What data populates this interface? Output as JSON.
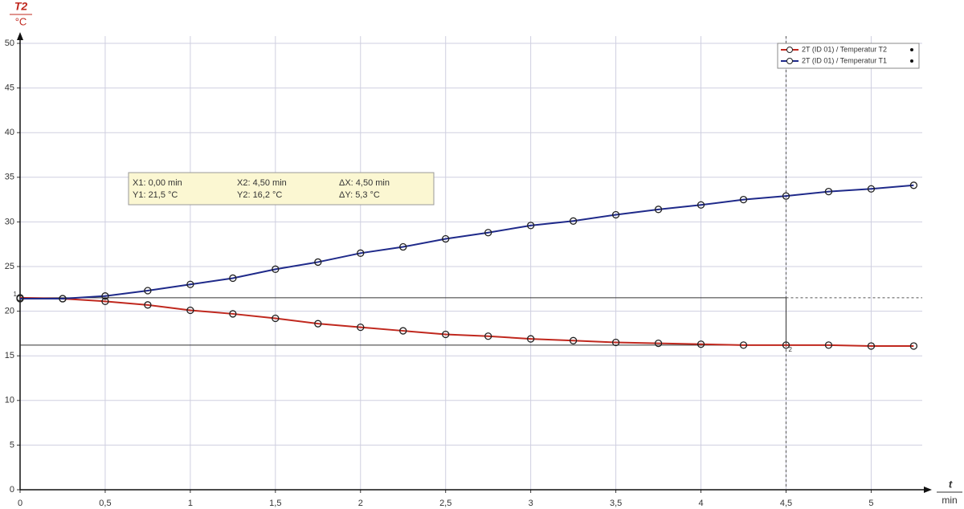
{
  "chart_data": {
    "type": "line",
    "y_label": "T2",
    "y_unit": "°C",
    "x_label": "t",
    "x_unit": "min",
    "x": [
      0,
      0.25,
      0.5,
      0.75,
      1,
      1.25,
      1.5,
      1.75,
      2,
      2.25,
      2.5,
      2.75,
      3,
      3.25,
      3.5,
      3.75,
      4,
      4.25,
      4.5,
      4.75,
      5,
      5.25
    ],
    "series": [
      {
        "name": "2T (ID 01) / Temperatur T2",
        "color": "#c0281e",
        "values": [
          21.5,
          21.4,
          21.1,
          20.7,
          20.1,
          19.7,
          19.2,
          18.6,
          18.2,
          17.8,
          17.4,
          17.2,
          16.9,
          16.7,
          16.5,
          16.4,
          16.3,
          16.2,
          16.2,
          16.2,
          16.1,
          16.1
        ]
      },
      {
        "name": "2T (ID 01) / Temperatur T1",
        "color": "#1f2a8a",
        "values": [
          21.4,
          21.4,
          21.7,
          22.3,
          23.0,
          23.7,
          24.7,
          25.5,
          26.5,
          27.2,
          28.1,
          28.8,
          29.6,
          30.1,
          30.8,
          31.4,
          31.9,
          32.5,
          32.9,
          33.4,
          33.7,
          34.1
        ]
      }
    ],
    "xlim": [
      0,
      5.3
    ],
    "ylim": [
      0,
      50
    ],
    "xticks": [
      0,
      {
        "value": 0.5,
        "label": "0,5"
      },
      1,
      {
        "value": 1.5,
        "label": "1,5"
      },
      2,
      {
        "value": 2.5,
        "label": "2,5"
      },
      3,
      {
        "value": 3.5,
        "label": "3,5"
      },
      4,
      {
        "value": 4.5,
        "label": "4,5"
      },
      5
    ],
    "yticks": [
      0,
      5,
      10,
      15,
      20,
      25,
      30,
      35,
      40,
      45,
      50
    ],
    "grid": true,
    "legend": "top-right",
    "cursor": {
      "x1": {
        "value": 0,
        "label": "X1:  0,00 min"
      },
      "x2": {
        "value": 4.5,
        "label": "X2:  4,50 min"
      },
      "dx": "ΔX: 4,50 min",
      "y1": {
        "value": 21.5,
        "label": "Y1:  21,5 °C"
      },
      "y2": {
        "value": 16.2,
        "label": "Y2:  16,2 °C"
      },
      "dy": "ΔY: 5,3 °C",
      "marker1": "1",
      "marker2": "2"
    }
  }
}
